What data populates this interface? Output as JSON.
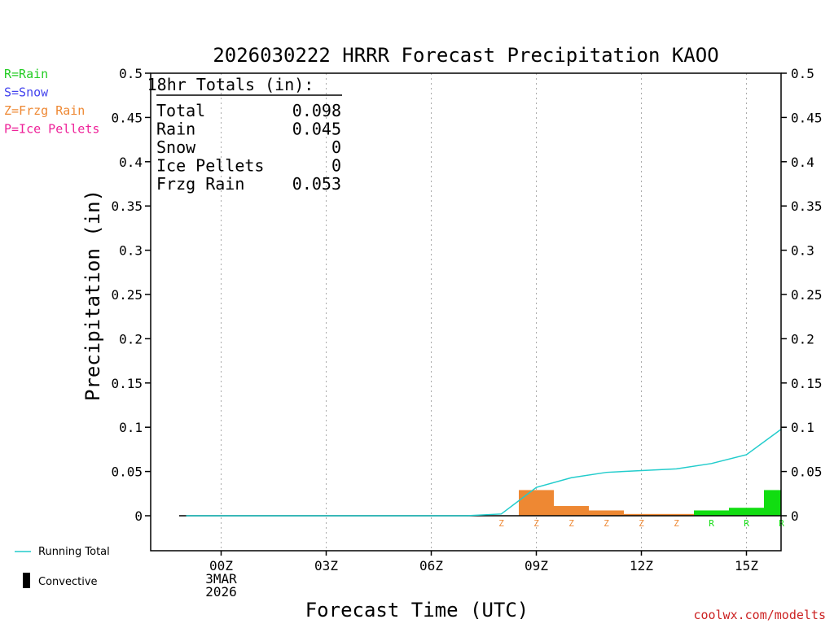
{
  "title": "2026030222 HRRR Forecast Precipitation KAOO",
  "ylabel": "Precipitation (in)",
  "xlabel": "Forecast Time (UTC)",
  "watermark": "coolwx.com/modelts",
  "legend_top": [
    {
      "text": "R=Rain",
      "color": "#22cc22"
    },
    {
      "text": "S=Snow",
      "color": "#4444ee"
    },
    {
      "text": "Z=Frzg Rain",
      "color": "#ee8833"
    },
    {
      "text": "P=Ice Pellets",
      "color": "#ee2299"
    }
  ],
  "legend_bottom": {
    "running_total": "Running Total",
    "convective": "Convective"
  },
  "totals": {
    "header": "18hr Totals (in):",
    "rows": [
      {
        "label": "Total",
        "value": "0.098"
      },
      {
        "label": "Rain",
        "value": "0.045"
      },
      {
        "label": "Snow",
        "value": "0"
      },
      {
        "label": "Ice Pellets",
        "value": "0"
      },
      {
        "label": "Frzg Rain",
        "value": "0.053"
      }
    ]
  },
  "colors": {
    "rain": "#11dd11",
    "frzg_rain": "#ee8833",
    "running_total": "#22cccc",
    "axis": "#000000",
    "grid": "#aaaaaa",
    "watermark": "#cc2222"
  },
  "chart_data": {
    "type": "bar",
    "title": "2026030222 HRRR Forecast Precipitation KAOO",
    "xlabel": "Forecast Time (UTC)",
    "ylabel": "Precipitation (in)",
    "ylim": [
      -0.04,
      0.5
    ],
    "xlim": [
      -1,
      16
    ],
    "yticks": [
      0,
      0.05,
      0.1,
      0.15,
      0.2,
      0.25,
      0.3,
      0.35,
      0.4,
      0.45,
      0.5
    ],
    "ytick_labels": [
      "0",
      "0.05",
      "0.1",
      "0.15",
      "0.2",
      "0.25",
      "0.3",
      "0.35",
      "0.4",
      "0.45",
      "0.5"
    ],
    "xticks": [
      {
        "hour": 0,
        "lines": [
          "00Z",
          "3MAR",
          "2026"
        ]
      },
      {
        "hour": 3,
        "lines": [
          "03Z"
        ]
      },
      {
        "hour": 6,
        "lines": [
          "06Z"
        ]
      },
      {
        "hour": 9,
        "lines": [
          "09Z"
        ]
      },
      {
        "hour": 12,
        "lines": [
          "12Z"
        ]
      },
      {
        "hour": 15,
        "lines": [
          "15Z"
        ]
      }
    ],
    "hours": [
      -1,
      0,
      1,
      2,
      3,
      4,
      5,
      6,
      7,
      8,
      9,
      10,
      11,
      12,
      13,
      14,
      15,
      16
    ],
    "hourly_precip": [
      0,
      0,
      0,
      0,
      0,
      0,
      0,
      0,
      0,
      0.002,
      0.029,
      0.011,
      0.006,
      0.002,
      0.002,
      0.006,
      0.009,
      0.029
    ],
    "precip_type": [
      "",
      "",
      "",
      "",
      "",
      "",
      "",
      "",
      "",
      "Z",
      "Z",
      "Z",
      "Z",
      "Z",
      "Z",
      "R",
      "R",
      "R"
    ],
    "running_total": [
      0,
      0,
      0,
      0,
      0,
      0,
      0,
      0,
      0,
      0.002,
      0.032,
      0.043,
      0.049,
      0.051,
      0.053,
      0.059,
      0.069,
      0.098
    ],
    "type_markers": [
      {
        "hour": 8,
        "code": "Z"
      },
      {
        "hour": 9,
        "code": "Z"
      },
      {
        "hour": 10,
        "code": "Z"
      },
      {
        "hour": 11,
        "code": "Z"
      },
      {
        "hour": 12,
        "code": "Z"
      },
      {
        "hour": 13,
        "code": "Z"
      },
      {
        "hour": 14,
        "code": "R"
      },
      {
        "hour": 15,
        "code": "R"
      },
      {
        "hour": 16,
        "code": "R"
      }
    ]
  }
}
